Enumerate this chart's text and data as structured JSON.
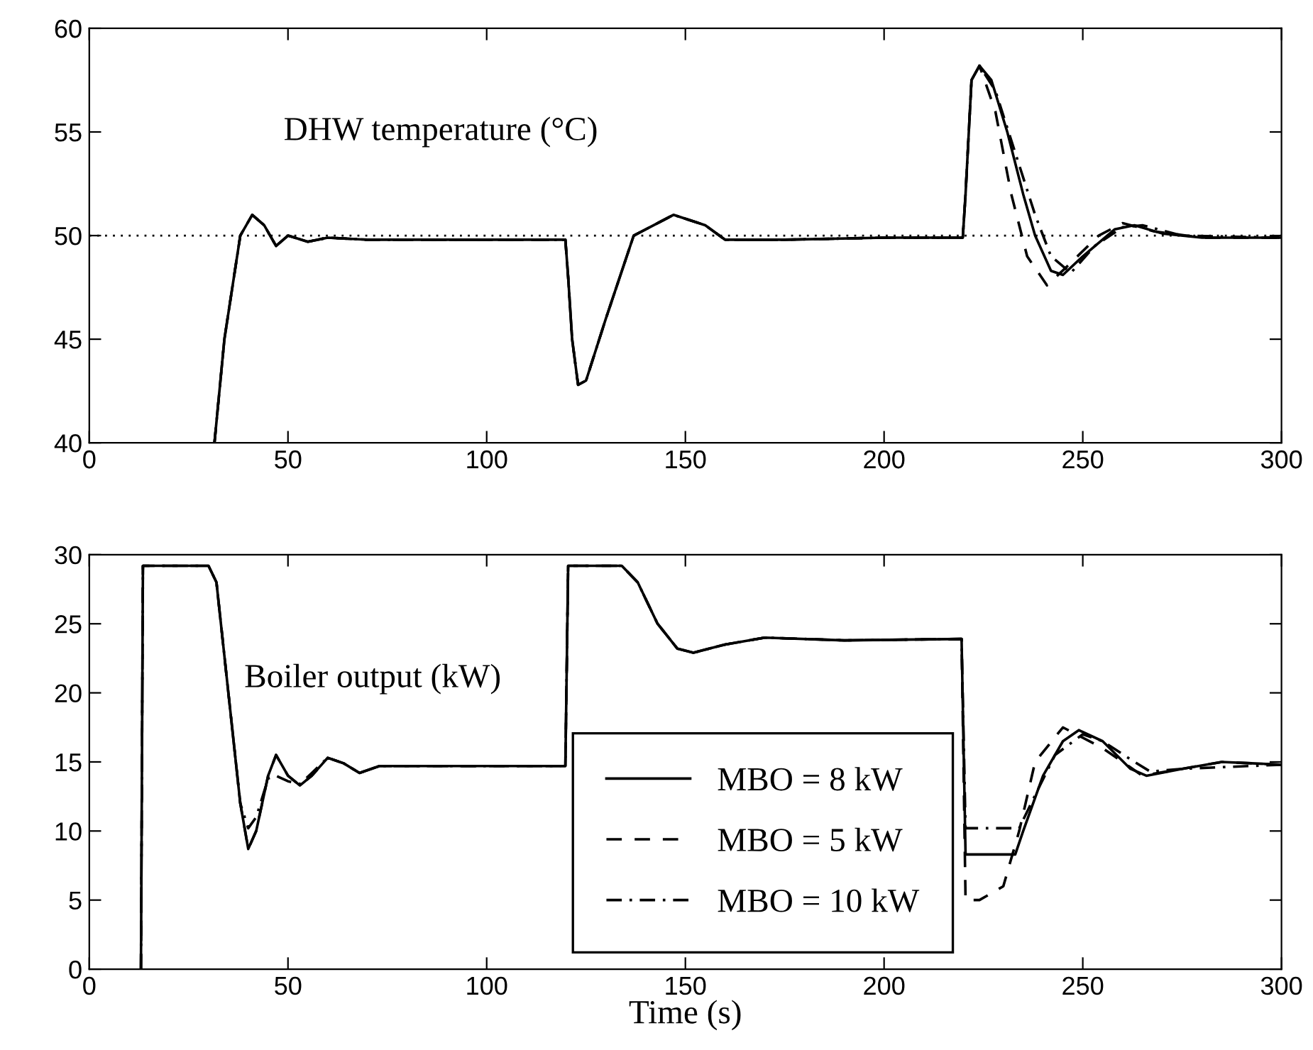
{
  "chart_data": [
    {
      "type": "line",
      "annotations": [
        "DHW temperature (°C)"
      ],
      "xlim": [
        0,
        300
      ],
      "ylim": [
        40,
        60
      ],
      "xticks": [
        0,
        50,
        100,
        150,
        200,
        250,
        300
      ],
      "yticks": [
        40,
        45,
        50,
        55,
        60
      ],
      "grid": false,
      "legend": false,
      "ref_lines": [
        {
          "axis": "y",
          "value": 50,
          "line_style": "dotted",
          "color": "#000000"
        }
      ],
      "series": [
        {
          "color": "#000000",
          "line_style": "solid",
          "x": [
            31.5,
            34,
            38,
            41,
            44,
            47,
            50,
            55,
            60,
            70,
            100,
            119.8,
            120.5,
            121.5,
            123,
            125,
            130,
            137,
            147,
            155,
            160,
            175,
            200,
            219.8,
            220.5,
            222,
            224,
            227,
            231,
            235,
            238,
            242,
            245,
            250,
            258,
            263,
            270,
            280,
            300
          ],
          "values": [
            40,
            45,
            50,
            51,
            50.5,
            49.5,
            50,
            49.7,
            49.9,
            49.8,
            49.8,
            49.8,
            48,
            45,
            42.8,
            43,
            46,
            50,
            51,
            50.5,
            49.8,
            49.8,
            49.9,
            49.9,
            52,
            57.5,
            58.2,
            57.5,
            55,
            52,
            50,
            48.3,
            48.1,
            49,
            50.3,
            50.5,
            50.1,
            49.9,
            49.9
          ]
        },
        {
          "color": "#000000",
          "line_style": "dashed",
          "x": [
            31.5,
            34,
            38,
            41,
            44,
            47,
            50,
            55,
            60,
            70,
            100,
            119.8,
            120.5,
            121.5,
            123,
            125,
            130,
            137,
            147,
            155,
            160,
            175,
            200,
            219.8,
            220.5,
            222,
            224,
            228,
            232,
            236,
            241,
            246,
            254,
            260,
            268,
            280,
            300
          ],
          "values": [
            40,
            45,
            50,
            51,
            50.5,
            49.5,
            50,
            49.7,
            49.9,
            49.8,
            49.8,
            49.8,
            48,
            45,
            42.8,
            43,
            46,
            50,
            51,
            50.5,
            49.8,
            49.8,
            49.9,
            49.9,
            52,
            57.5,
            58.2,
            56,
            52,
            49,
            47.6,
            48.5,
            50,
            50.6,
            50.2,
            49.9,
            49.9
          ]
        },
        {
          "color": "#000000",
          "line_style": "dashdot",
          "x": [
            31.5,
            34,
            38,
            41,
            44,
            47,
            50,
            55,
            60,
            70,
            100,
            119.8,
            120.5,
            121.5,
            123,
            125,
            130,
            137,
            147,
            155,
            160,
            175,
            200,
            219.8,
            220.5,
            222,
            224,
            228,
            233,
            238,
            242,
            247,
            253,
            260,
            265,
            275,
            300
          ],
          "values": [
            40,
            45,
            50,
            51,
            50.5,
            49.5,
            50,
            49.7,
            49.9,
            49.8,
            49.8,
            49.8,
            48,
            45,
            42.8,
            43,
            46,
            50,
            51,
            50.5,
            49.8,
            49.8,
            49.9,
            49.9,
            52,
            57.5,
            58.2,
            57,
            54,
            51,
            49,
            48.2,
            49.5,
            50.4,
            50.5,
            50,
            49.9
          ]
        }
      ]
    },
    {
      "type": "line",
      "annotations": [
        "Boiler output (kW)"
      ],
      "xlabel": "Time (s)",
      "xlim": [
        0,
        300
      ],
      "ylim": [
        0,
        30
      ],
      "xticks": [
        0,
        50,
        100,
        150,
        200,
        250,
        300
      ],
      "yticks": [
        0,
        5,
        10,
        15,
        20,
        25,
        30
      ],
      "grid": false,
      "legend": "bottom",
      "series": [
        {
          "name": "MBO = 8 kW",
          "color": "#000000",
          "line_style": "solid",
          "x": [
            13,
            13.5,
            30,
            32,
            35,
            38,
            40,
            42,
            45,
            47,
            50,
            53,
            56,
            60,
            64,
            68,
            73,
            119.8,
            120.5,
            134,
            138,
            143,
            148,
            152,
            160,
            170,
            190,
            219.5,
            220.5,
            233,
            235,
            240,
            245,
            249,
            255,
            262,
            266,
            275,
            285,
            300
          ],
          "values": [
            0,
            29.2,
            29.2,
            28,
            20,
            12,
            8.7,
            10,
            14,
            15.5,
            14,
            13.3,
            14,
            15.3,
            14.9,
            14.2,
            14.7,
            14.7,
            29.2,
            29.2,
            28,
            25,
            23.2,
            22.9,
            23.5,
            24,
            23.8,
            23.9,
            8.3,
            8.3,
            10,
            14,
            16.5,
            17.3,
            16.5,
            14.5,
            14,
            14.5,
            15,
            14.8
          ]
        },
        {
          "name": "MBO = 5 kW",
          "color": "#000000",
          "line_style": "dashed",
          "x": [
            13,
            13.5,
            30,
            32,
            35,
            38,
            40,
            42,
            45,
            47,
            50,
            53,
            56,
            60,
            64,
            68,
            73,
            119.8,
            120.5,
            134,
            138,
            143,
            148,
            152,
            160,
            170,
            190,
            219.5,
            220.5,
            224,
            230,
            234,
            238,
            245,
            255,
            265,
            275,
            285,
            300
          ],
          "values": [
            0,
            29.2,
            29.2,
            28,
            20,
            12,
            8.7,
            10,
            14,
            15.5,
            14,
            13.3,
            14,
            15.3,
            14.9,
            14.2,
            14.7,
            14.7,
            29.2,
            29.2,
            28,
            25,
            23.2,
            22.9,
            23.5,
            24,
            23.8,
            23.9,
            5,
            5,
            6,
            10,
            15,
            17.5,
            16,
            14,
            14.5,
            15,
            14.8
          ]
        },
        {
          "name": "MBO = 10 kW",
          "color": "#000000",
          "line_style": "dashdot",
          "x": [
            13,
            13.5,
            30,
            32,
            35,
            38,
            40,
            42,
            45,
            47,
            50,
            53,
            56,
            60,
            64,
            68,
            73,
            119.8,
            120.5,
            134,
            138,
            143,
            148,
            152,
            160,
            170,
            190,
            219.5,
            220.5,
            234,
            237,
            243,
            250,
            255,
            263,
            267,
            275,
            300
          ],
          "values": [
            0,
            29.2,
            29.2,
            28,
            20,
            12,
            10.2,
            11,
            13.8,
            14,
            13.6,
            13.4,
            14.2,
            15.3,
            14.9,
            14.2,
            14.7,
            14.7,
            29.2,
            29.2,
            28,
            25,
            23.2,
            22.9,
            23.5,
            24,
            23.8,
            23.9,
            10.2,
            10.2,
            12,
            15.5,
            17,
            16.5,
            15,
            14.3,
            14.5,
            14.8
          ]
        }
      ]
    }
  ]
}
